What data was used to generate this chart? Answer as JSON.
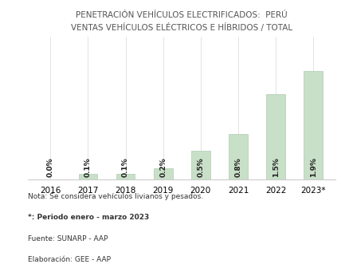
{
  "title_line1": "PENETRACIÓN VEHÍCULOS ELECTRIFICADOS:  PERÚ",
  "title_line2": "VENTAS VEHÍCULOS ELÉCTRICOS E HÍBRIDOS / TOTAL",
  "categories": [
    "2016",
    "2017",
    "2018",
    "2019",
    "2020",
    "2021",
    "2022",
    "2023*"
  ],
  "values": [
    0.0,
    0.1,
    0.1,
    0.2,
    0.5,
    0.8,
    1.5,
    1.9
  ],
  "labels": [
    "0.0%",
    "0.1%",
    "0.1%",
    "0.2%",
    "0.5%",
    "0.8%",
    "1.5%",
    "1.9%"
  ],
  "bar_color": "#c8dfc8",
  "bar_edge_color": "#b0ccb0",
  "label_color": "#222222",
  "title_color": "#555555",
  "background_color": "#ffffff",
  "ylim": [
    0,
    2.5
  ],
  "note1": "Nota: Se considera vehículos livianos y pesados.",
  "note2": "*: Periodo enero - marzo 2023",
  "note3": "Fuente: SUNARP - AAP",
  "note4": "Elaboración: GEE - AAP",
  "title_fontsize": 7.5,
  "label_fontsize": 6.5,
  "tick_fontsize": 7.5,
  "note_fontsize": 6.5,
  "note2_fontsize": 6.5,
  "note3_fontsize": 6.5,
  "note4_fontsize": 6.5
}
